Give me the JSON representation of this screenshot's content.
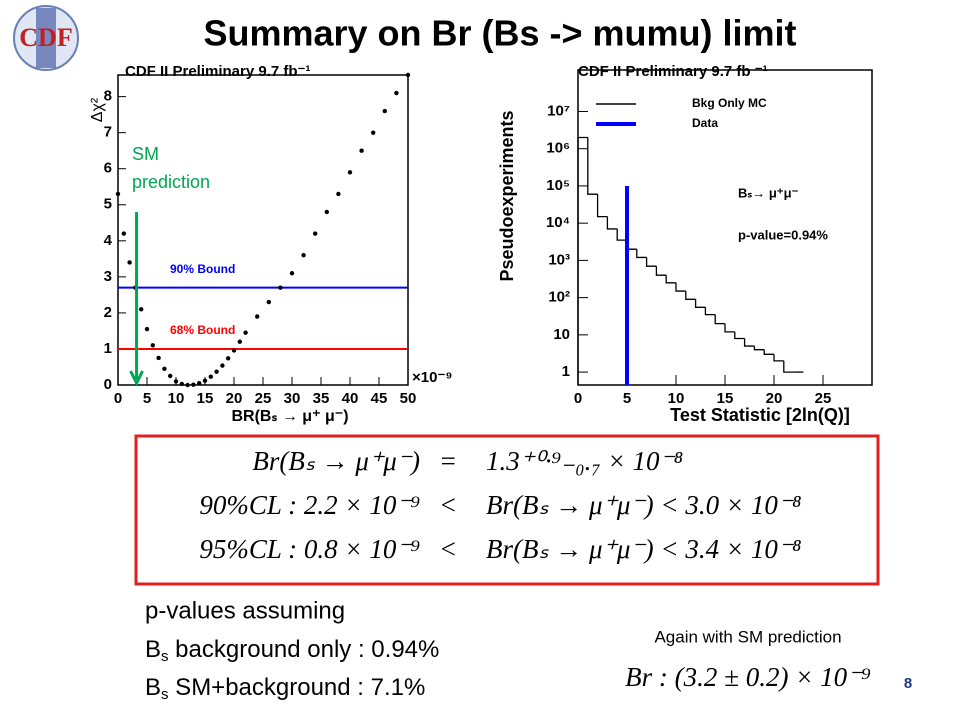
{
  "logo": "CDF",
  "title": "Summary on Br (Bs -> mumu) limit",
  "chart_data": [
    {
      "type": "scatter",
      "title": "CDF II Preliminary 9.7 fb⁻¹",
      "x_label": "BR(Bₛ → μ⁺ μ⁻)",
      "x_unit": "×10⁻⁹",
      "y_label": "Δχ²",
      "x": [
        0,
        1,
        2,
        3,
        4,
        5,
        6,
        7,
        8,
        9,
        10,
        11,
        12,
        13,
        14,
        15,
        16,
        17,
        18,
        19,
        20,
        21,
        22,
        24,
        26,
        28,
        30,
        32,
        34,
        36,
        38,
        40,
        42,
        44,
        46,
        48,
        50
      ],
      "values": [
        5.3,
        4.2,
        3.4,
        2.7,
        2.1,
        1.55,
        1.1,
        0.75,
        0.45,
        0.25,
        0.1,
        0.03,
        0,
        0.01,
        0.05,
        0.12,
        0.23,
        0.37,
        0.54,
        0.74,
        0.96,
        1.2,
        1.45,
        1.9,
        2.3,
        2.7,
        3.1,
        3.6,
        4.2,
        4.8,
        5.3,
        5.9,
        6.5,
        7.0,
        7.6,
        8.1,
        8.6
      ],
      "color": "#000000",
      "hlines": [
        {
          "name": "90% Bound",
          "value": 2.7,
          "color": "#0000ff"
        },
        {
          "name": "68% Bound",
          "value": 1,
          "color": "#ff0000"
        }
      ],
      "annotation": {
        "lines": [
          "SM",
          "prediction"
        ],
        "x": 3.2,
        "color": "#00a651"
      },
      "xlim": [
        0,
        50
      ],
      "ylim": [
        0,
        8.6
      ],
      "xticks": [
        0,
        5,
        10,
        15,
        20,
        25,
        30,
        35,
        40,
        45,
        50
      ],
      "yticks": [
        0,
        1,
        2,
        3,
        4,
        5,
        6,
        7,
        8
      ]
    },
    {
      "type": "histogram",
      "title": "CDF II Preliminary 9.7 fb ⁻¹",
      "x_label": "Test Statistic [2ln(Q)]",
      "y_label": "Pseudoexperiments",
      "log_y": true,
      "series": [
        {
          "name": "Bkg Only MC",
          "color": "#000000",
          "bins": [
            0,
            1,
            2,
            3,
            4,
            5,
            6,
            7,
            8,
            9,
            10,
            11,
            12,
            13,
            14,
            15,
            16,
            17,
            18,
            19,
            20,
            21,
            22,
            23
          ],
          "values": [
            2000000,
            60000,
            15000,
            7000,
            3500,
            2000,
            1200,
            700,
            400,
            250,
            150,
            90,
            55,
            35,
            20,
            12,
            8,
            5,
            4,
            3,
            2,
            1,
            1
          ]
        }
      ],
      "data": {
        "name": "Data",
        "color": "#0000ff",
        "x": 5
      },
      "annotations": [
        "Bₛ→ μ⁺μ⁻",
        "p-value=0.94%"
      ],
      "xlim": [
        0,
        30
      ],
      "ylim": [
        0.45,
        130000000
      ],
      "xticks": [
        0,
        5,
        10,
        15,
        20,
        25
      ],
      "yticks": [
        1,
        10,
        {
          "value": 100,
          "label": "10²"
        },
        {
          "value": 1000,
          "label": "10³"
        },
        {
          "value": 10000,
          "label": "10⁴"
        },
        {
          "value": 100000,
          "label": "10⁵"
        },
        {
          "value": 1000000,
          "label": "10⁶"
        },
        {
          "value": 10000000,
          "label": "10⁷"
        }
      ]
    }
  ],
  "equations": [
    [
      "Br(Bₛ → μ⁺μ⁻)",
      "=",
      "1.3⁺⁰·⁹₋₀.₇ × 10⁻⁸"
    ],
    [
      "90%CL : 2.2 × 10⁻⁹",
      "<",
      "Br(Bₛ → μ⁺μ⁻) < 3.0 × 10⁻⁸"
    ],
    [
      "95%CL : 0.8 × 10⁻⁹",
      "<",
      "Br(Bₛ → μ⁺μ⁻) < 3.4 × 10⁻⁸"
    ]
  ],
  "pvalues": {
    "heading": "p-values assuming",
    "items": [
      {
        "symbol": "B",
        "sub": "s",
        "text": " background only : 0.94%"
      },
      {
        "symbol": "B",
        "sub": "s",
        "text": " SM+background : 7.1%"
      }
    ]
  },
  "sm_prediction": {
    "heading": "Again with SM prediction",
    "value": "Br : (3.2 ± 0.2) × 10⁻⁹"
  },
  "page_number": "8"
}
